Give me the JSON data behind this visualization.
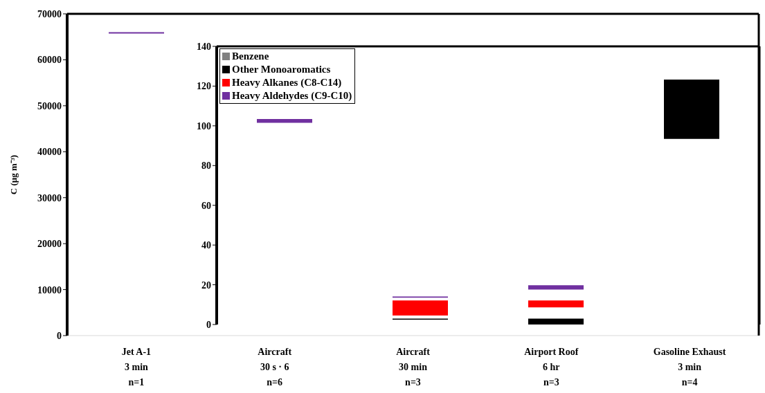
{
  "chart_data": [
    {
      "type": "bar",
      "ylabel": "C (µg m⁻³)",
      "categories": [
        "Jet A-1\n3 min\nn=1",
        "Aircraft\n30 s  · 6\nn=6",
        "Aircraft\n30 min\nn=3",
        "Airport Roof\n6 hr\nn=3",
        "Gasoline Exhaust\n3 min\nn=4"
      ],
      "series": [
        {
          "color": "#7030a0",
          "values": [
            300,
            null,
            null,
            null,
            null
          ],
          "base": [
            65700,
            null,
            null,
            null,
            null
          ]
        }
      ],
      "ylim": [
        0,
        70000
      ],
      "yticks": [
        0,
        10000,
        20000,
        30000,
        40000,
        50000,
        60000,
        70000
      ],
      "grid": false,
      "legend": false
    },
    {
      "type": "bar",
      "categories": [
        null,
        null,
        null,
        null
      ],
      "tick_labels": "y",
      "series": [
        {
          "name": "Benzene",
          "color": "#808080",
          "values": [
            null,
            null,
            null,
            null
          ],
          "base": [
            null,
            null,
            null,
            null
          ]
        },
        {
          "name": "Other Monoaromatics",
          "color": "#000000",
          "values": [
            null,
            0.6,
            3.0,
            29.9
          ],
          "base": [
            null,
            2.4,
            0,
            93.4
          ]
        },
        {
          "name": "Heavy Alkanes (C8-C14)",
          "color": "#ff0000",
          "values": [
            null,
            7.6,
            3.5,
            null
          ],
          "base": [
            null,
            4.5,
            8.6,
            null
          ]
        },
        {
          "name": "Heavy Aldehydes (C9-C10)",
          "color": "#7030a0",
          "values": [
            1.9,
            0.6,
            2.2,
            null
          ],
          "base": [
            101.5,
            13.5,
            17.6,
            null
          ]
        }
      ],
      "ylim": [
        0,
        140
      ],
      "yticks": [
        0,
        20,
        40,
        60,
        80,
        100,
        120,
        140
      ],
      "grid": false,
      "legend": "top left"
    }
  ]
}
